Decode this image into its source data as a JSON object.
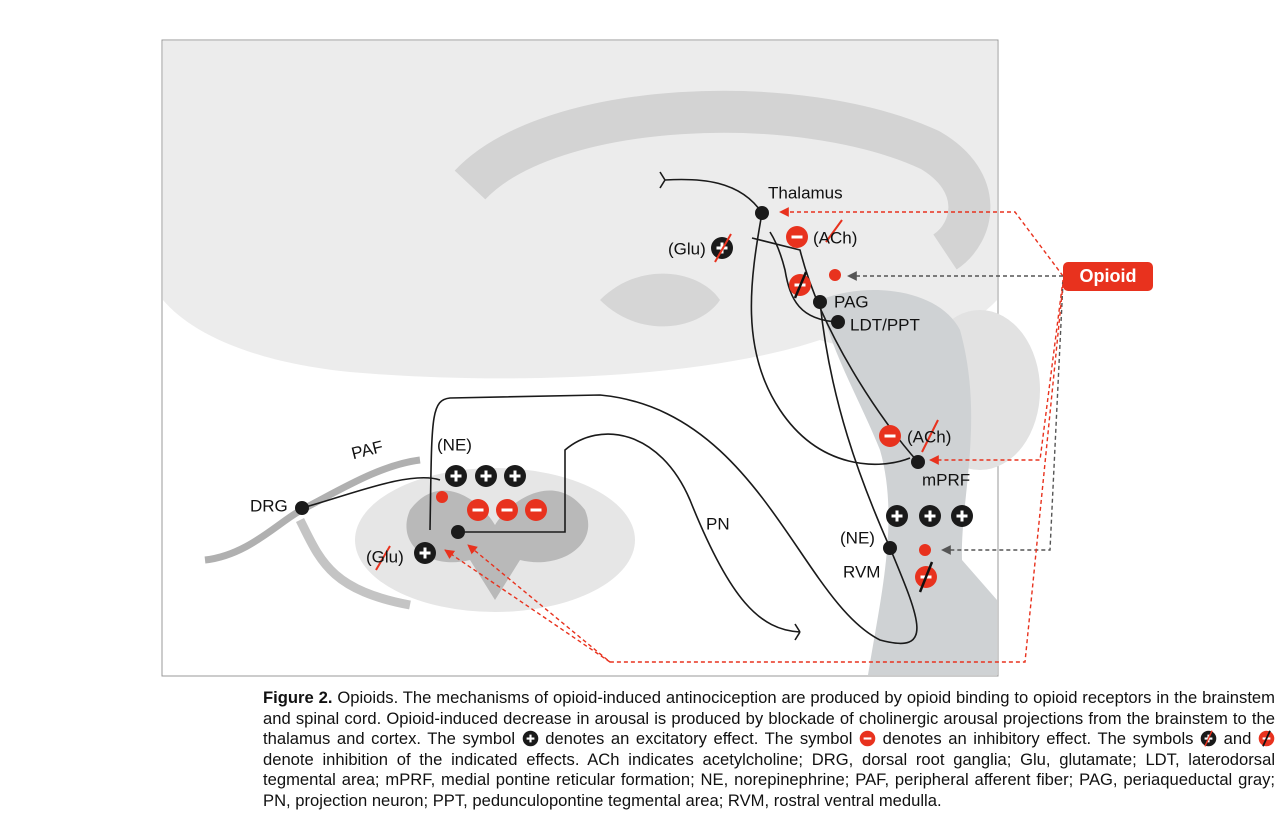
{
  "figure": {
    "labels": {
      "thalamus": "Thalamus",
      "glu_top": "(Glu)",
      "ach_top": "(ACh)",
      "pag": "PAG",
      "ldt_ppt": "LDT/PPT",
      "opioid": "Opioid",
      "ne_spinal": "(NE)",
      "paf": "PAF",
      "drg": "DRG",
      "glu_spinal": "(Glu)",
      "pn": "PN",
      "ach_mprf": "(ACh)",
      "mprf": "mPRF",
      "ne_rvm": "(NE)",
      "rvm": "RVM"
    },
    "caption": {
      "label": "Figure 2.",
      "parts": [
        "Opioids. The mechanisms of opioid-induced antinociception are produced by opioid binding to opioid receptors in the brainstem and spinal cord. Opioid-induced decrease in arousal is produced by blockade of cholinergic arousal projections from the brainstem to the thalamus and cortex. The symbol",
        "denotes an excitatory effect. The symbol",
        "denotes an inhibitory effect. The symbols",
        "and",
        "denote inhibition of the indicated effects. ACh indicates acetylcholine; DRG, dorsal root ganglia; Glu, glutamate; LDT, laterodorsal tegmental area; mPRF, medial pontine reticular formation; NE, norepinephrine; PAF, peripheral afferent fiber; PAG, periaqueductal gray; PN, projection neuron; PPT, pedunculopontine tegmental area; RVM, rostral ventral medulla."
      ]
    }
  }
}
